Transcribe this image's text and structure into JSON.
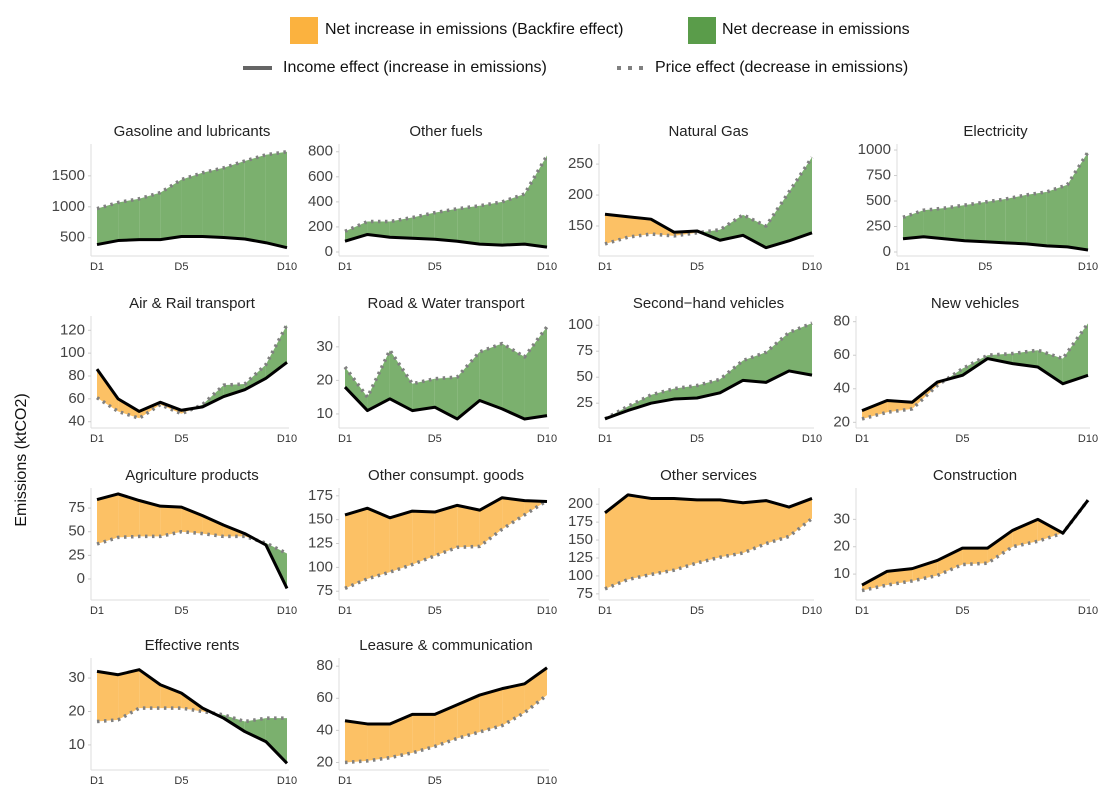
{
  "chart_data": {
    "type": "area-between",
    "ylabel": "Emissions (ktCO2)",
    "fills": [
      {
        "name": "Net increase in emissions (Backfire effect)",
        "color": "#fbb23f"
      },
      {
        "name": "Net decrease in emissions",
        "color": "#5a9c4a"
      }
    ],
    "series": [
      {
        "name": "Income effect (increase in emissions)",
        "color": "#000000",
        "dash": false
      },
      {
        "name": "Price effect (decrease in emissions)",
        "color": "#808080",
        "dash": true
      }
    ],
    "categories": [
      "D1",
      null,
      null,
      null,
      "D5",
      null,
      null,
      null,
      null,
      "D10"
    ],
    "panels": [
      {
        "title": "Gasoline and lubricants",
        "ylim": [
          270,
          1950
        ],
        "yticks": [
          500,
          1000,
          1500
        ],
        "values": [
          [
            390,
            455,
            470,
            470,
            520,
            520,
            505,
            480,
            420,
            340
          ],
          [
            970,
            1070,
            1130,
            1230,
            1440,
            1550,
            1630,
            1740,
            1840,
            1890
          ]
        ]
      },
      {
        "title": "Other fuels",
        "ylim": [
          0,
          830
        ],
        "yticks": [
          0,
          200,
          400,
          600,
          800
        ],
        "values": [
          [
            86,
            140,
            118,
            110,
            102,
            86,
            63,
            55,
            63,
            39
          ],
          [
            165,
            243,
            243,
            275,
            314,
            345,
            369,
            400,
            463,
            770
          ]
        ]
      },
      {
        "title": "Natural Gas",
        "ylim": [
          108,
          276
        ],
        "yticks": [
          150,
          200,
          250
        ],
        "values": [
          [
            169,
            165,
            161,
            140,
            142,
            127,
            135,
            115,
            126,
            139
          ],
          [
            121,
            132,
            137,
            134,
            139,
            144,
            168,
            150,
            205,
            261
          ]
        ]
      },
      {
        "title": "Electricity",
        "ylim": [
          0,
          1020
        ],
        "yticks": [
          0,
          250,
          500,
          750,
          1000
        ],
        "values": [
          [
            130,
            150,
            130,
            110,
            100,
            90,
            80,
            60,
            50,
            20
          ],
          [
            340,
            410,
            430,
            460,
            490,
            520,
            560,
            590,
            660,
            980
          ]
        ]
      },
      {
        "title": "Air & Rail transport",
        "ylim": [
          38,
          129
        ],
        "yticks": [
          40,
          60,
          80,
          100,
          120
        ],
        "values": [
          [
            86,
            60,
            49,
            57,
            50,
            53,
            62,
            68,
            78,
            92
          ],
          [
            61,
            49,
            43,
            55,
            47,
            55,
            72,
            73,
            90,
            125
          ]
        ]
      },
      {
        "title": "Road & Water transport",
        "ylim": [
          7,
          38
        ],
        "yticks": [
          10,
          20,
          30
        ],
        "values": [
          [
            18,
            11,
            14.5,
            11,
            12,
            8.5,
            14,
            11.5,
            8.5,
            9.5
          ],
          [
            24,
            15,
            29,
            19,
            20.5,
            21,
            28.5,
            31,
            27,
            36
          ]
        ]
      },
      {
        "title": "Second−hand vehicles",
        "ylim": [
          5,
          105
        ],
        "yticks": [
          25,
          50,
          75,
          100
        ],
        "values": [
          [
            10,
            18,
            25,
            29,
            30,
            35,
            47,
            45,
            56,
            52
          ],
          [
            10,
            22,
            33,
            39,
            42,
            48,
            66,
            74,
            93,
            102
          ]
        ]
      },
      {
        "title": "New vehicles",
        "ylim": [
          19,
          81
        ],
        "yticks": [
          20,
          40,
          60,
          80
        ],
        "values": [
          [
            27,
            33,
            32,
            44,
            48,
            58,
            55,
            53,
            43,
            48
          ],
          [
            22,
            26,
            28,
            42,
            52,
            60,
            61,
            63,
            58,
            79
          ]
        ]
      },
      {
        "title": "Agriculture products",
        "ylim": [
          -18,
          92
        ],
        "yticks": [
          0,
          25,
          50,
          75
        ],
        "values": [
          [
            84,
            90,
            83,
            77,
            76,
            67,
            57,
            48,
            36,
            -10
          ],
          [
            37,
            44,
            45,
            45,
            50,
            48,
            45,
            45,
            38,
            27
          ]
        ]
      },
      {
        "title": "Other consumpt. goods",
        "ylim": [
          70,
          179
        ],
        "yticks": [
          75,
          100,
          125,
          150,
          175
        ],
        "values": [
          [
            155,
            162,
            152,
            159,
            158,
            165,
            160,
            173,
            170,
            169
          ],
          [
            78,
            88,
            95,
            103,
            112,
            121,
            122,
            140,
            155,
            170
          ]
        ]
      },
      {
        "title": "Other services",
        "ylim": [
          72,
          217
        ],
        "yticks": [
          75,
          100,
          125,
          150,
          175,
          200
        ],
        "values": [
          [
            188,
            213,
            208,
            208,
            206,
            206,
            202,
            205,
            196,
            208
          ],
          [
            82,
            95,
            102,
            108,
            118,
            126,
            132,
            145,
            155,
            180
          ]
        ]
      },
      {
        "title": "Construction",
        "ylim": [
          2,
          40
        ],
        "yticks": [
          10,
          20,
          30
        ],
        "values": [
          [
            6,
            11,
            12,
            15,
            19.5,
            19.5,
            26,
            30,
            25,
            37
          ],
          [
            4,
            6,
            7.5,
            9.5,
            13.5,
            14,
            20,
            22,
            25,
            37
          ]
        ]
      },
      {
        "title": "Effective rents",
        "ylim": [
          3.7,
          34.8
        ],
        "yticks": [
          10,
          20,
          30
        ],
        "values": [
          [
            32,
            31,
            32.5,
            28,
            25.5,
            21,
            18,
            14,
            11,
            4.5
          ],
          [
            17,
            17.5,
            21,
            21,
            21,
            20,
            19,
            17,
            18,
            18
          ]
        ]
      },
      {
        "title": "Leasure & communication",
        "ylim": [
          17.8,
          82.6
        ],
        "yticks": [
          20,
          40,
          60,
          80
        ],
        "values": [
          [
            46,
            44,
            44,
            50,
            50,
            56,
            62,
            66,
            69,
            79
          ],
          [
            20,
            21,
            23,
            26,
            30,
            35,
            39,
            43,
            51,
            62
          ]
        ]
      }
    ]
  }
}
